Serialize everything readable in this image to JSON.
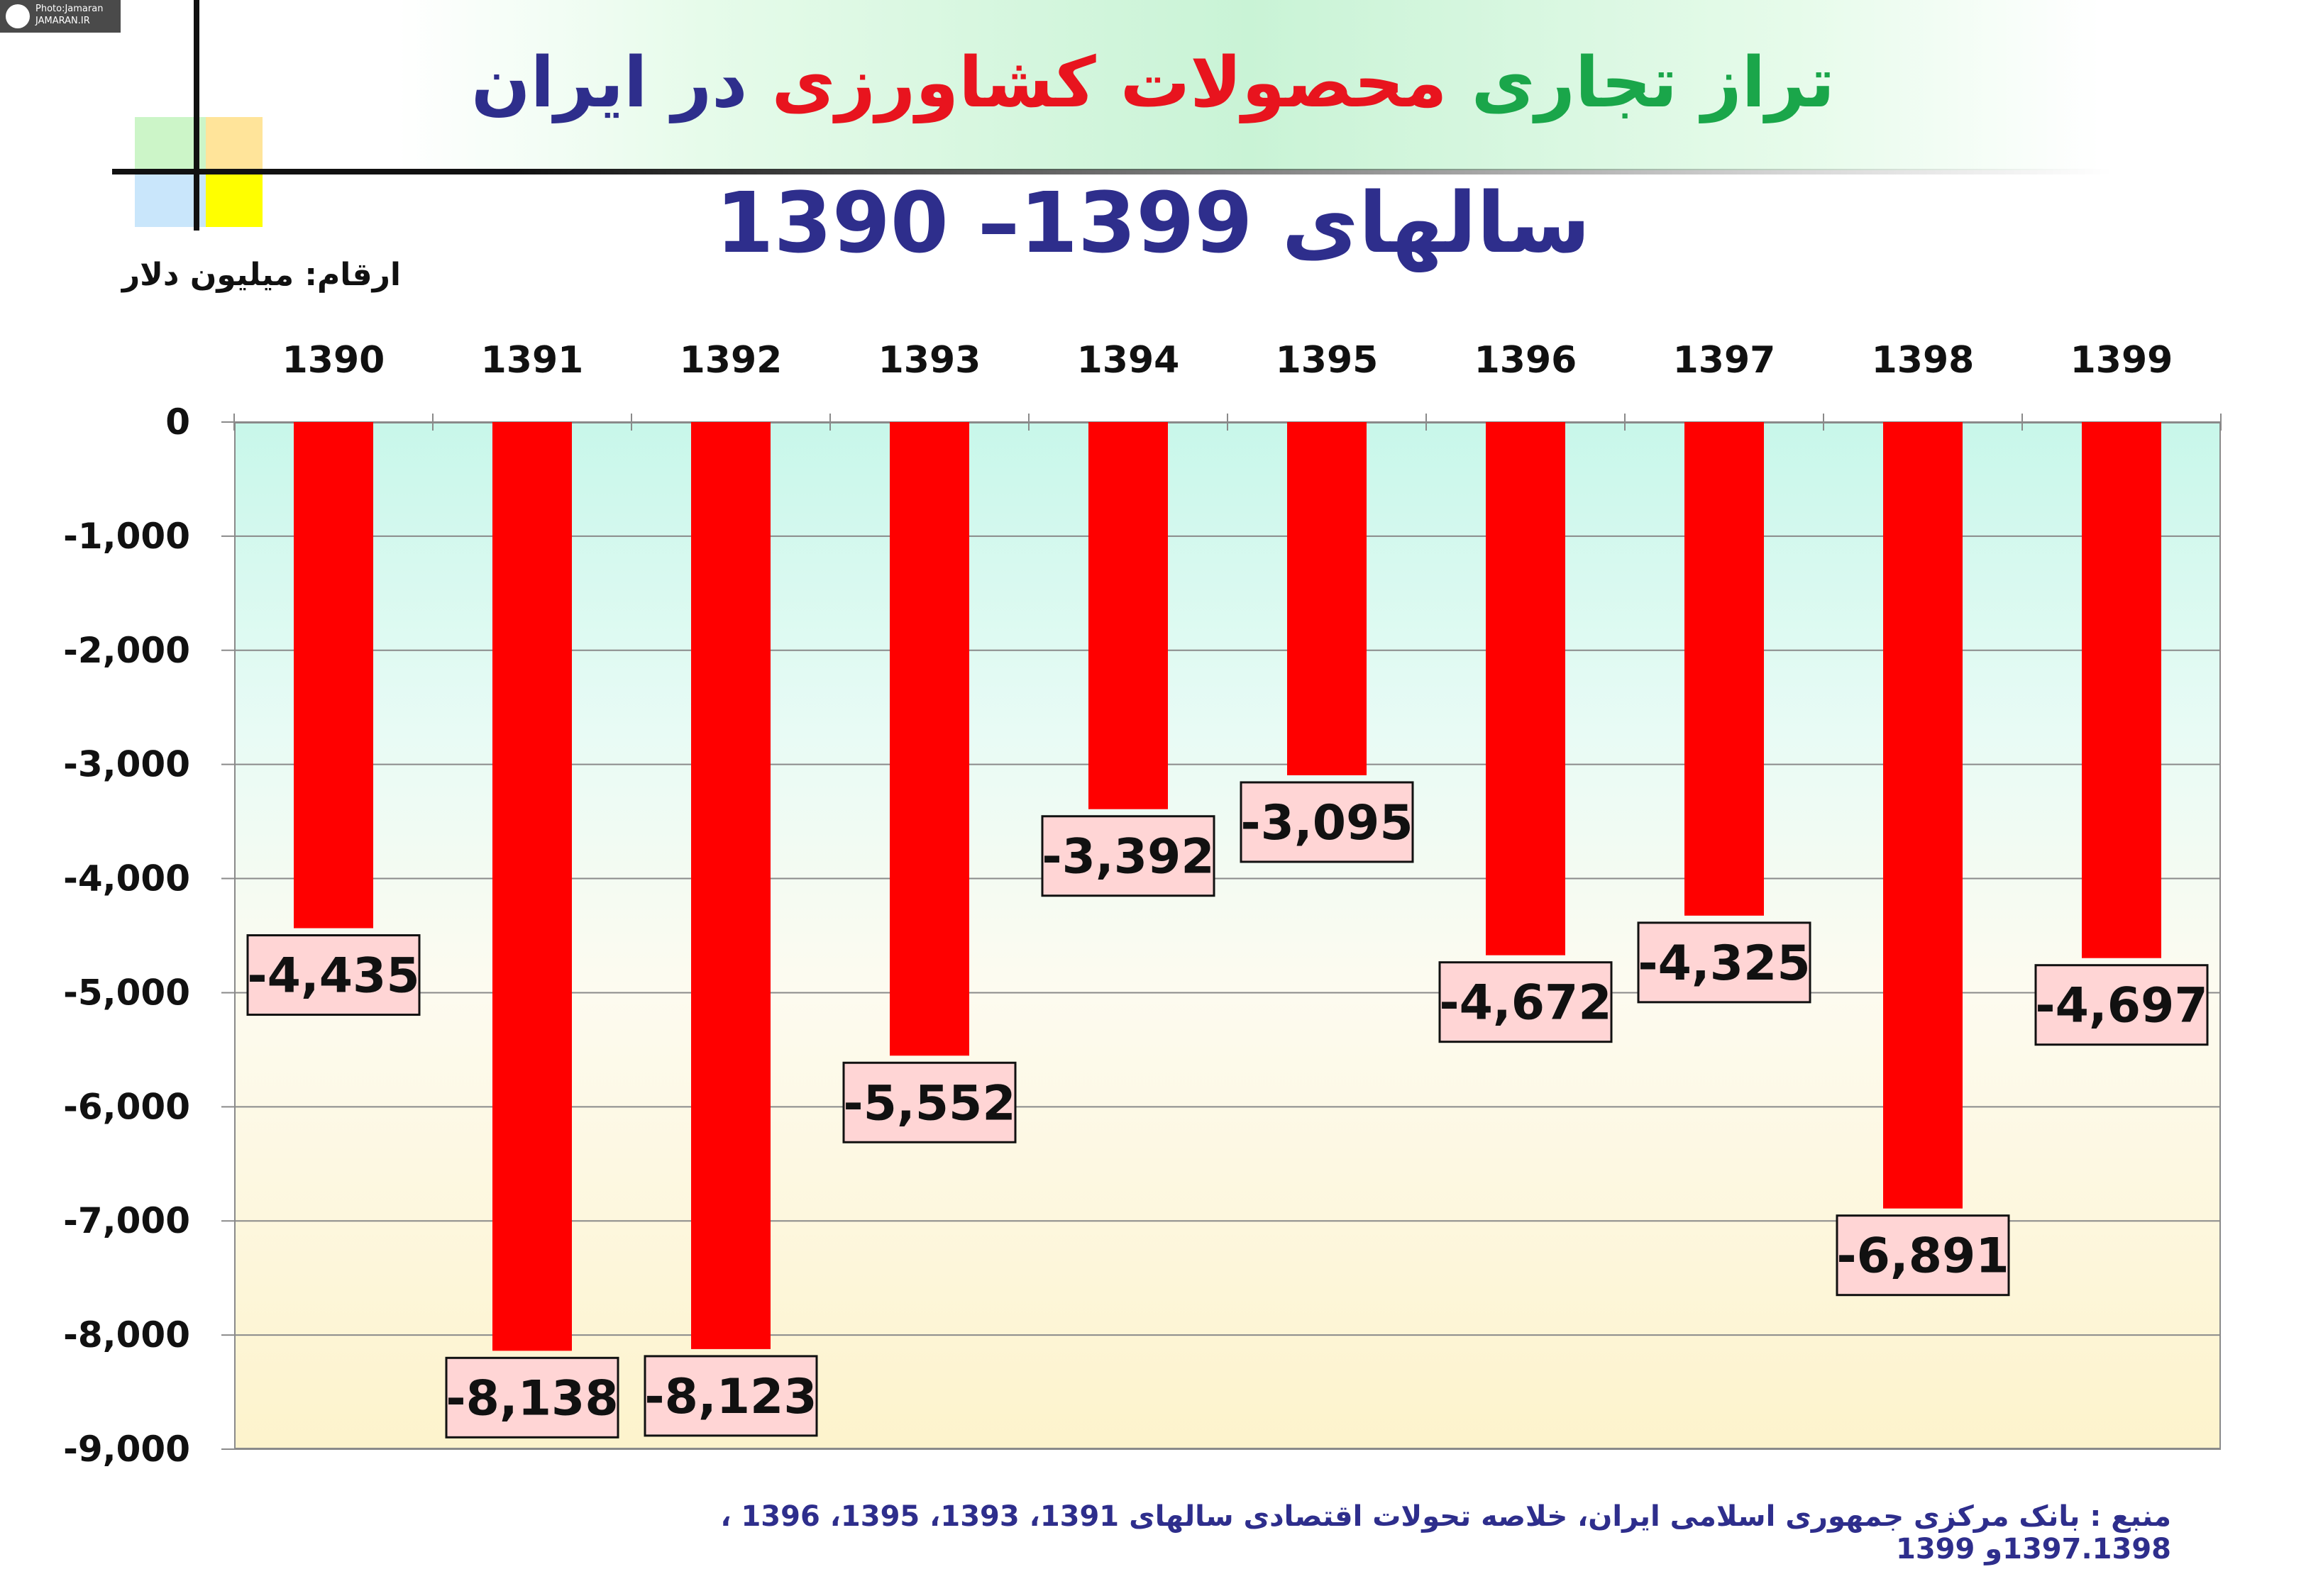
{
  "watermark": {
    "line1": "Photo:Jamaran",
    "line2": "JAMARAN.IR"
  },
  "title": {
    "part1": "تراز تجاری ",
    "part2": "محصولات کشاورزی",
    "part3": " در ایران",
    "part1_color": "#1aa64a",
    "part2_color": "#e8141e",
    "part3_color": "#2e2e8c"
  },
  "subtitle": "سالهای 1399–  1390",
  "unit_label": "ارقام: میلیون دلار",
  "source": "منبع : بانک مرکزی جمهوری اسلامی ایران، خلاصه تحولات اقتصادی سالهای 1391، 1393، 1395، 1396 ، 1397.1398و 1399",
  "colors": {
    "bar": "#ff0000",
    "label_box": "#ffd5d5",
    "grid": "#8a8a8a"
  },
  "chart_data": {
    "type": "bar",
    "categories": [
      "1390",
      "1391",
      "1392",
      "1393",
      "1394",
      "1395",
      "1396",
      "1397",
      "1398",
      "1399"
    ],
    "values": [
      -4435,
      -8138,
      -8123,
      -5552,
      -3392,
      -3095,
      -4672,
      -4325,
      -6891,
      -4697
    ],
    "data_labels": [
      "-4,435",
      "-8,138",
      "-8,123",
      "-5,552",
      "-3,392",
      "-3,095",
      "-4,672",
      "-4,325",
      "-6,891",
      "-4,697"
    ],
    "ylim": [
      -9000,
      0
    ],
    "yticks": [
      0,
      -1000,
      -2000,
      -3000,
      -4000,
      -5000,
      -6000,
      -7000,
      -8000,
      -9000
    ],
    "ytick_labels": [
      "0",
      "-1,000",
      "-2,000",
      "-3,000",
      "-4,000",
      "-5,000",
      "-6,000",
      "-7,000",
      "-8,000",
      "-9,000"
    ],
    "category_axis_position": "top",
    "grid": true,
    "legend": false
  }
}
